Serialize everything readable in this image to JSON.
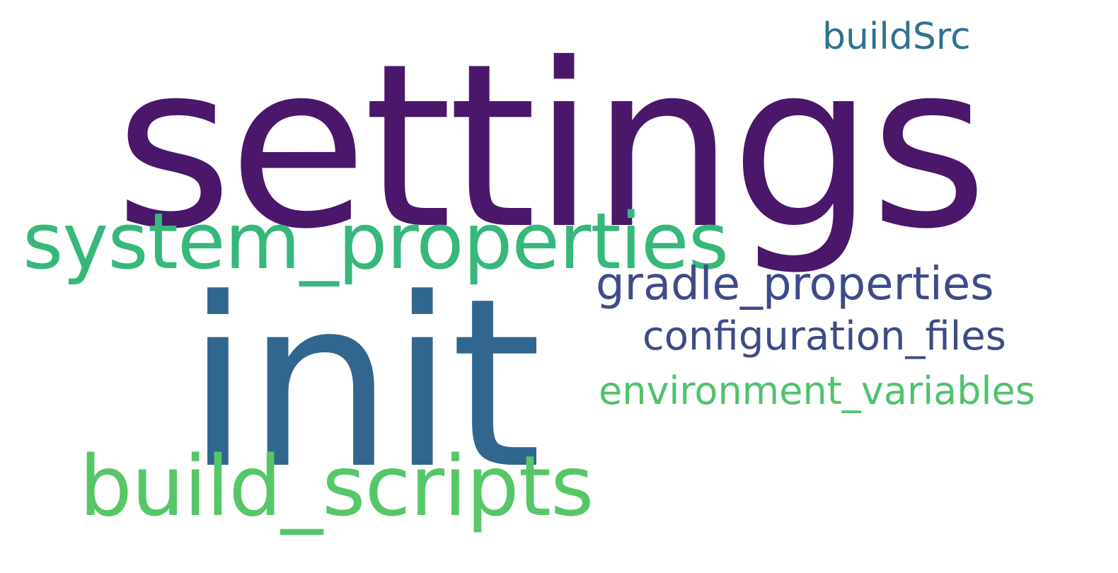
{
  "words": [
    {
      "text": "settings",
      "color": "#4a176b"
    },
    {
      "text": "init",
      "color": "#31668f"
    },
    {
      "text": "system_properties",
      "color": "#36b87b"
    },
    {
      "text": "build_scripts",
      "color": "#56c767"
    },
    {
      "text": "gradle_properties",
      "color": "#3f4a89"
    },
    {
      "text": "configuration_files",
      "color": "#3e4a88"
    },
    {
      "text": "environment_variables",
      "color": "#4fc36c"
    },
    {
      "text": "buildSrc",
      "color": "#2e7190"
    }
  ]
}
